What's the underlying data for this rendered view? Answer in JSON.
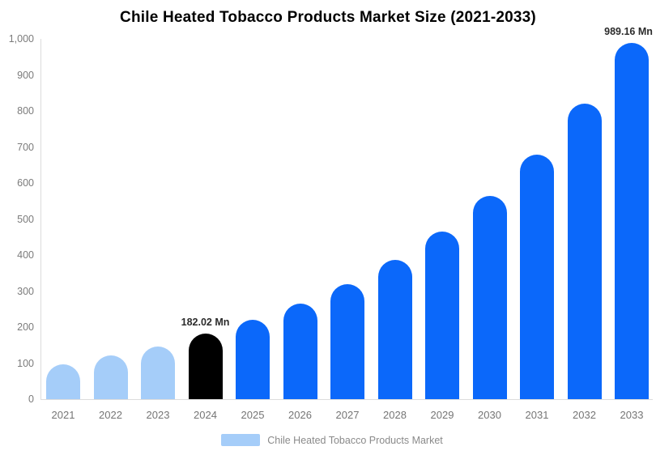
{
  "chart_data": {
    "type": "bar",
    "title": "Chile Heated Tobacco Products Market Size (2021-2033)",
    "xlabel": "",
    "ylabel": "",
    "unit": "Mn",
    "categories": [
      2021,
      2022,
      2023,
      2024,
      2025,
      2026,
      2027,
      2028,
      2029,
      2030,
      2031,
      2032,
      2033
    ],
    "values": [
      97,
      121,
      147,
      182.02,
      220,
      265,
      320,
      386,
      466,
      563,
      679,
      820,
      989.16
    ],
    "bar_colors": [
      "#a5cdf9",
      "#a5cdf9",
      "#a5cdf9",
      "#000000",
      "#0b68fa",
      "#0b68fa",
      "#0b68fa",
      "#0b68fa",
      "#0b68fa",
      "#0b68fa",
      "#0b68fa",
      "#0b68fa",
      "#0b68fa"
    ],
    "value_labels": {
      "2024": "182.02 Mn",
      "2033": "989.16 Mn"
    },
    "ylim": [
      0,
      1000
    ],
    "yticks": [
      {
        "label": "1,000",
        "value": 1000
      },
      {
        "label": "900",
        "value": 900
      },
      {
        "label": "800",
        "value": 800
      },
      {
        "label": "700",
        "value": 700
      },
      {
        "label": "600",
        "value": 600
      },
      {
        "label": "500",
        "value": 500
      },
      {
        "label": "400",
        "value": 400
      },
      {
        "label": "300",
        "value": 300
      },
      {
        "label": "200",
        "value": 200
      },
      {
        "label": "100",
        "value": 100
      },
      {
        "label": "0",
        "value": 0
      }
    ],
    "grid": false,
    "legend_position": "bottom",
    "legend": {
      "label": "Chile Heated Tobacco Products Market",
      "swatch_color": "#a5cdf9"
    },
    "colors": {
      "historical_bar": "#a5cdf9",
      "base_year_bar": "#000000",
      "forecast_bar": "#0b68fa",
      "axis_line": "#dcdcdc",
      "tick_text": "#7b7b7b",
      "data_label_text": "#2b2b2b"
    }
  }
}
